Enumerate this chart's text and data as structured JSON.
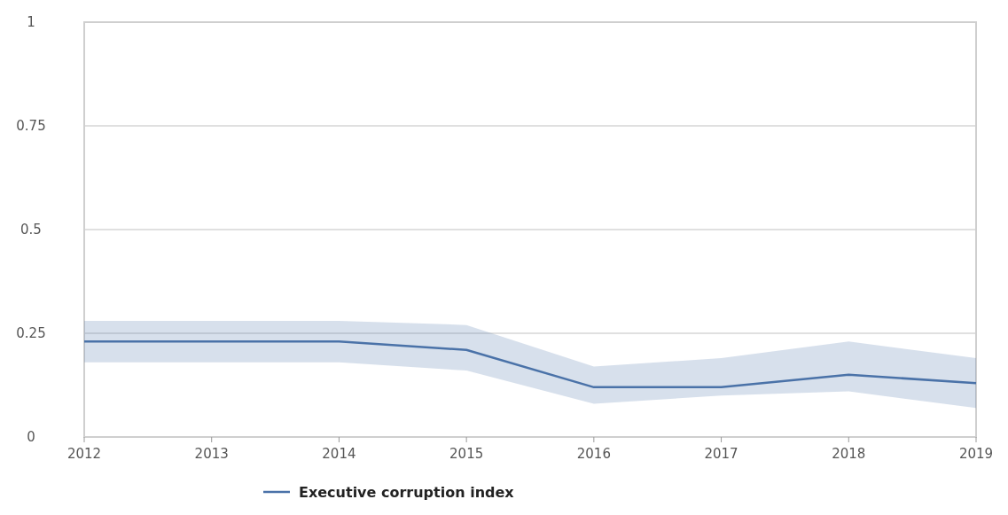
{
  "chart_data": {
    "type": "line",
    "x": [
      2012,
      2013,
      2014,
      2015,
      2016,
      2017,
      2018,
      2019
    ],
    "series": [
      {
        "name": "Executive corruption index",
        "color": "#4a72a8",
        "values": [
          0.23,
          0.23,
          0.23,
          0.21,
          0.12,
          0.12,
          0.15,
          0.13
        ],
        "lower": [
          0.18,
          0.18,
          0.18,
          0.16,
          0.08,
          0.1,
          0.11,
          0.07
        ],
        "upper": [
          0.28,
          0.28,
          0.28,
          0.27,
          0.17,
          0.19,
          0.23,
          0.19
        ]
      }
    ],
    "xlim": [
      2012,
      2019
    ],
    "xticks": [
      2012,
      2013,
      2014,
      2015,
      2016,
      2017,
      2018,
      2019
    ],
    "ylim": [
      0,
      1
    ],
    "yticks": [
      0,
      {
        "value": 0.25,
        "label": "0.25"
      },
      {
        "value": 0.5,
        "label": "0.5"
      },
      {
        "value": 0.75,
        "label": "0.75"
      },
      1
    ],
    "grid": "y",
    "legend": "bottom",
    "marker": "none",
    "line_style": "solid"
  }
}
